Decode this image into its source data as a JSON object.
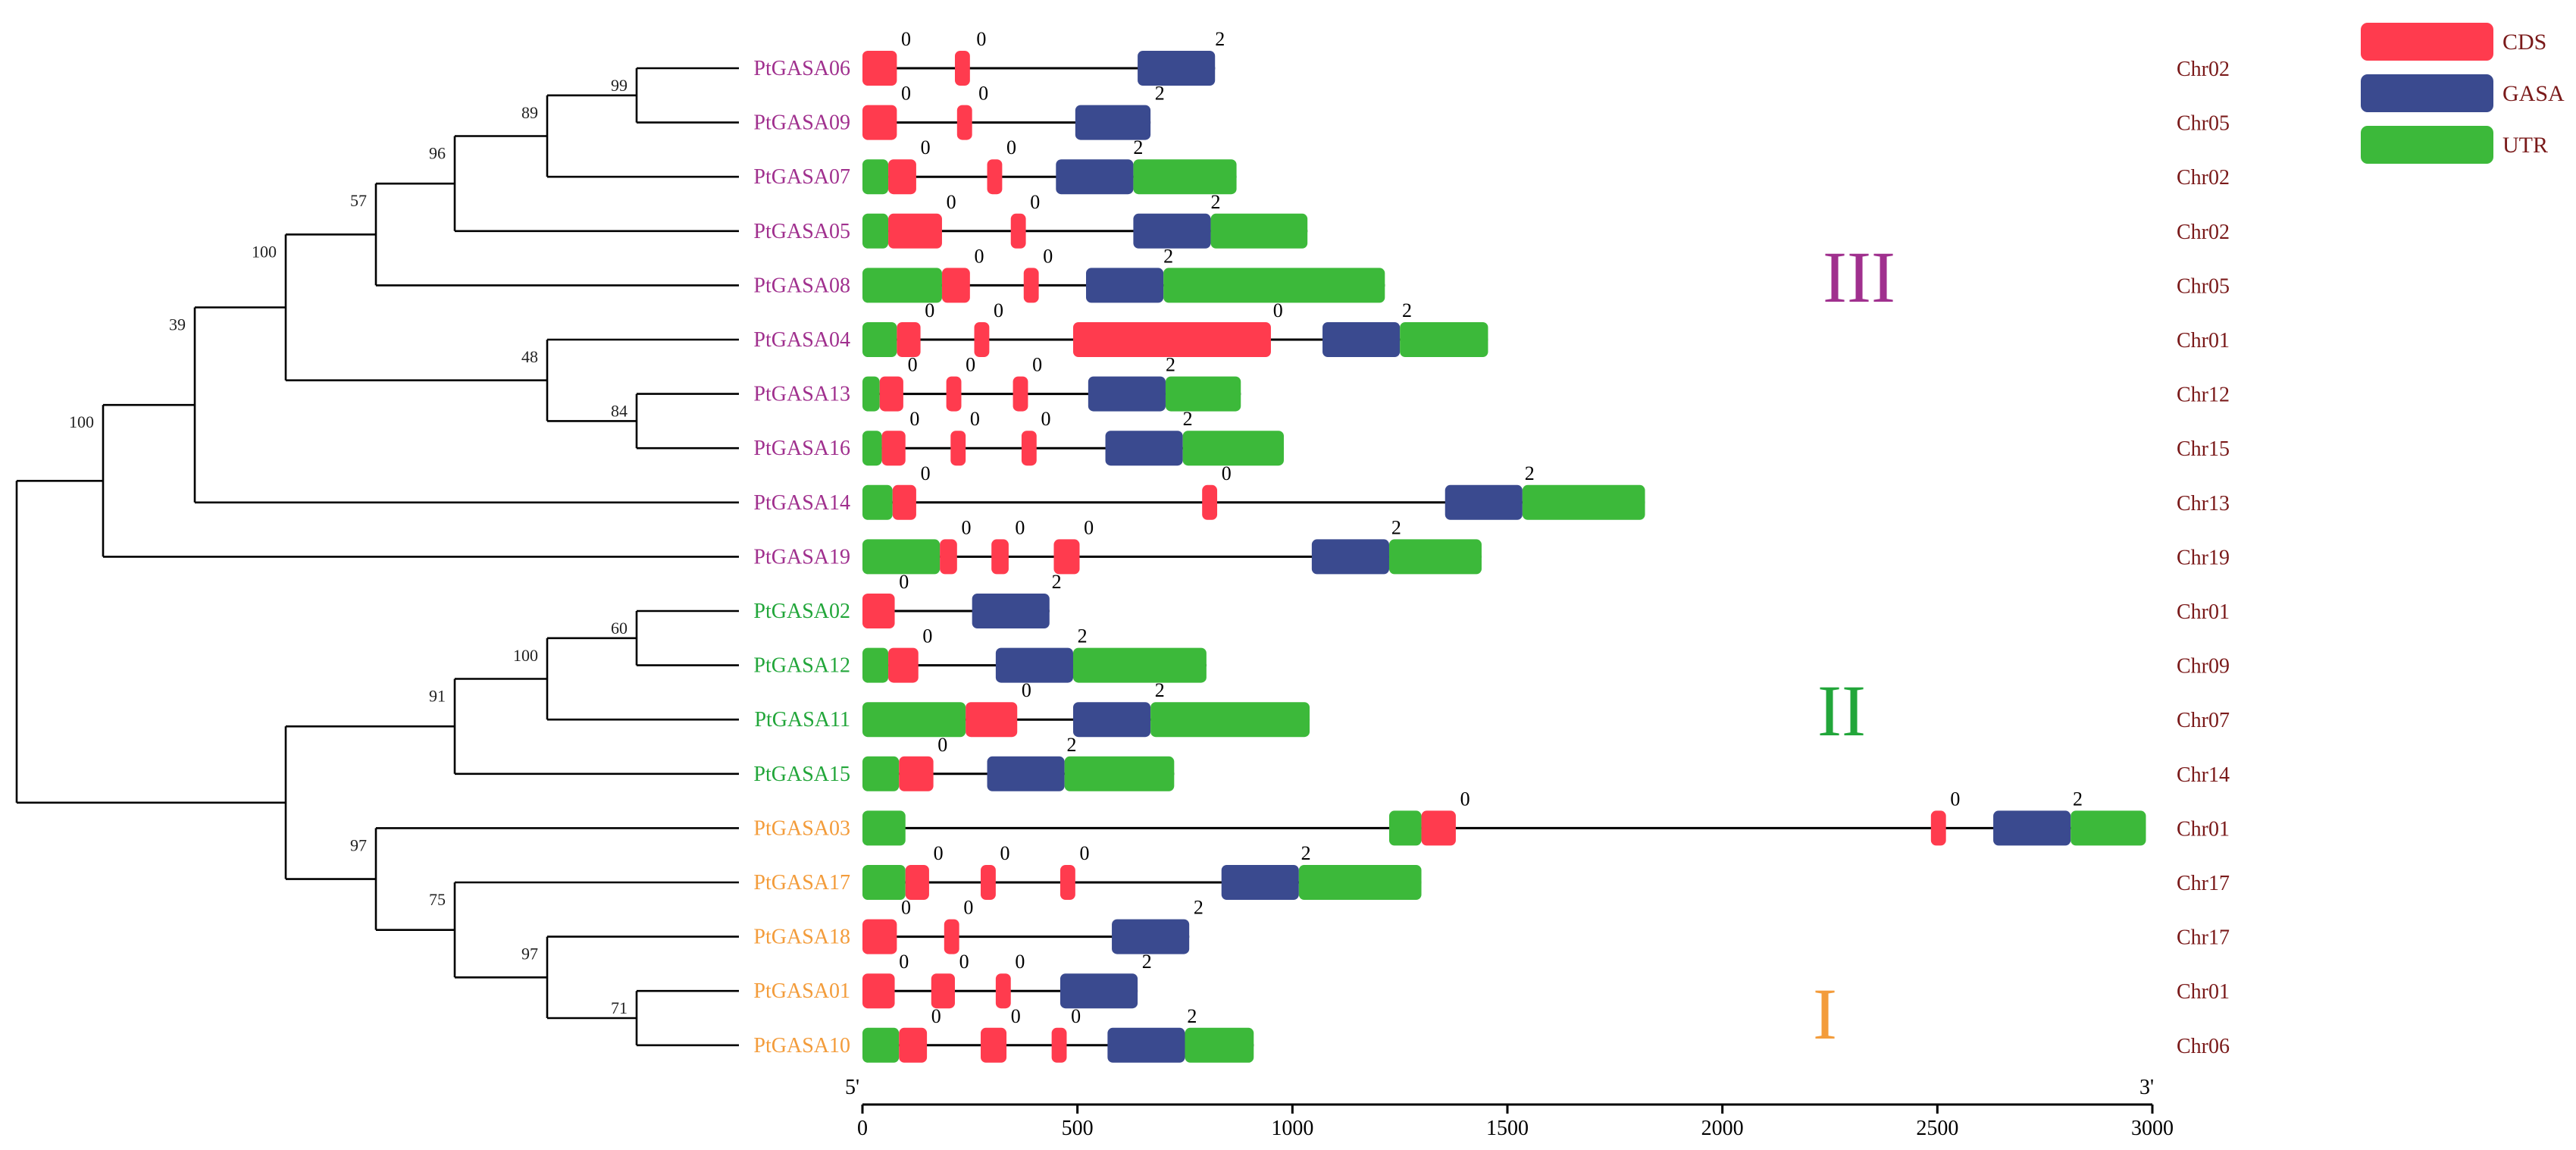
{
  "legend": [
    {
      "label": "CDS",
      "color": "#ff3b4e"
    },
    {
      "label": "GASA",
      "color": "#3a4a8f"
    },
    {
      "label": "UTR",
      "color": "#3cb93a"
    }
  ],
  "axis": {
    "min": 0,
    "max": 3000,
    "ticks": [
      0,
      500,
      1000,
      1500,
      2000,
      2500,
      3000
    ],
    "start_label": "5'",
    "end_label": "3'"
  },
  "groups": [
    {
      "label": "III",
      "color": "#a0308e"
    },
    {
      "label": "II",
      "color": "#22a63a"
    },
    {
      "label": "I",
      "color": "#f39c3b"
    }
  ],
  "bootstrap": [
    "99",
    "89",
    "96",
    "57",
    "48",
    "84",
    "100",
    "39",
    "100",
    "60",
    "100",
    "91",
    "71",
    "97",
    "75",
    "97"
  ],
  "genes": [
    {
      "name": "PtGASA06",
      "group": 0,
      "chr": "Chr02",
      "length": 820,
      "segments": [
        [
          "cds",
          0,
          80
        ],
        [
          "cds",
          215,
          250
        ],
        [
          "gasa",
          640,
          820
        ]
      ],
      "phases": [
        [
          "0",
          90
        ],
        [
          "0",
          265
        ],
        [
          "2",
          820
        ]
      ]
    },
    {
      "name": "PtGASA09",
      "group": 0,
      "chr": "Chr05",
      "length": 670,
      "segments": [
        [
          "cds",
          0,
          80
        ],
        [
          "cds",
          220,
          255
        ],
        [
          "gasa",
          495,
          670
        ]
      ],
      "phases": [
        [
          "0",
          90
        ],
        [
          "0",
          270
        ],
        [
          "2",
          680
        ]
      ]
    },
    {
      "name": "PtGASA07",
      "group": 0,
      "chr": "Chr02",
      "length": 870,
      "segments": [
        [
          "utr",
          0,
          60
        ],
        [
          "cds",
          60,
          125
        ],
        [
          "cds",
          290,
          325
        ],
        [
          "gasa",
          450,
          630
        ],
        [
          "utr",
          630,
          870
        ]
      ],
      "phases": [
        [
          "0",
          135
        ],
        [
          "0",
          335
        ],
        [
          "2",
          630
        ]
      ]
    },
    {
      "name": "PtGASA05",
      "group": 0,
      "chr": "Chr02",
      "length": 1035,
      "segments": [
        [
          "utr",
          0,
          60
        ],
        [
          "cds",
          60,
          185
        ],
        [
          "cds",
          345,
          380
        ],
        [
          "gasa",
          630,
          810
        ],
        [
          "utr",
          810,
          1035
        ]
      ],
      "phases": [
        [
          "0",
          195
        ],
        [
          "0",
          390
        ],
        [
          "2",
          810
        ]
      ]
    },
    {
      "name": "PtGASA08",
      "group": 0,
      "chr": "Chr05",
      "length": 1215,
      "segments": [
        [
          "utr",
          0,
          185
        ],
        [
          "cds",
          185,
          250
        ],
        [
          "cds",
          375,
          410
        ],
        [
          "gasa",
          520,
          700
        ],
        [
          "utr",
          700,
          1215
        ]
      ],
      "phases": [
        [
          "0",
          260
        ],
        [
          "0",
          420
        ],
        [
          "2",
          700
        ]
      ]
    },
    {
      "name": "PtGASA04",
      "group": 0,
      "chr": "Chr01",
      "length": 1455,
      "segments": [
        [
          "utr",
          0,
          80
        ],
        [
          "cds",
          80,
          135
        ],
        [
          "cds",
          260,
          295
        ],
        [
          "cds",
          490,
          950
        ],
        [
          "gasa",
          1070,
          1250
        ],
        [
          "utr",
          1250,
          1455
        ]
      ],
      "phases": [
        [
          "0",
          145
        ],
        [
          "0",
          305
        ],
        [
          "0",
          955
        ],
        [
          "2",
          1255
        ]
      ]
    },
    {
      "name": "PtGASA13",
      "group": 0,
      "chr": "Chr12",
      "length": 880,
      "segments": [
        [
          "utr",
          0,
          40
        ],
        [
          "cds",
          40,
          95
        ],
        [
          "cds",
          195,
          230
        ],
        [
          "cds",
          350,
          385
        ],
        [
          "gasa",
          525,
          705
        ],
        [
          "utr",
          705,
          880
        ]
      ],
      "phases": [
        [
          "0",
          105
        ],
        [
          "0",
          240
        ],
        [
          "0",
          395
        ],
        [
          "2",
          705
        ]
      ]
    },
    {
      "name": "PtGASA16",
      "group": 0,
      "chr": "Chr15",
      "length": 980,
      "segments": [
        [
          "utr",
          0,
          45
        ],
        [
          "cds",
          45,
          100
        ],
        [
          "cds",
          205,
          240
        ],
        [
          "cds",
          370,
          405
        ],
        [
          "gasa",
          565,
          745
        ],
        [
          "utr",
          745,
          980
        ]
      ],
      "phases": [
        [
          "0",
          110
        ],
        [
          "0",
          250
        ],
        [
          "0",
          415
        ],
        [
          "2",
          745
        ]
      ]
    },
    {
      "name": "PtGASA14",
      "group": 0,
      "chr": "Chr13",
      "length": 1820,
      "segments": [
        [
          "utr",
          0,
          70
        ],
        [
          "cds",
          70,
          125
        ],
        [
          "cds",
          790,
          825
        ],
        [
          "gasa",
          1355,
          1535
        ],
        [
          "utr",
          1535,
          1820
        ]
      ],
      "phases": [
        [
          "0",
          135
        ],
        [
          "0",
          835
        ],
        [
          "2",
          1540
        ]
      ]
    },
    {
      "name": "PtGASA19",
      "group": 0,
      "chr": "Chr19",
      "length": 1440,
      "segments": [
        [
          "utr",
          0,
          180
        ],
        [
          "cds",
          180,
          220
        ],
        [
          "cds",
          300,
          340
        ],
        [
          "cds",
          445,
          505
        ],
        [
          "gasa",
          1045,
          1225
        ],
        [
          "utr",
          1225,
          1440
        ]
      ],
      "phases": [
        [
          "0",
          230
        ],
        [
          "0",
          355
        ],
        [
          "0",
          515
        ],
        [
          "2",
          1230
        ]
      ]
    },
    {
      "name": "PtGASA02",
      "group": 1,
      "chr": "Chr01",
      "length": 435,
      "segments": [
        [
          "cds",
          0,
          75
        ],
        [
          "gasa",
          255,
          435
        ]
      ],
      "phases": [
        [
          "0",
          85
        ],
        [
          "2",
          440
        ]
      ]
    },
    {
      "name": "PtGASA12",
      "group": 1,
      "chr": "Chr09",
      "length": 800,
      "segments": [
        [
          "utr",
          0,
          60
        ],
        [
          "cds",
          60,
          130
        ],
        [
          "gasa",
          310,
          490
        ],
        [
          "utr",
          490,
          800
        ]
      ],
      "phases": [
        [
          "0",
          140
        ],
        [
          "2",
          500
        ]
      ]
    },
    {
      "name": "PtGASA11",
      "group": 1,
      "chr": "Chr07",
      "length": 1040,
      "segments": [
        [
          "utr",
          0,
          240
        ],
        [
          "cds",
          240,
          360
        ],
        [
          "gasa",
          490,
          670
        ],
        [
          "utr",
          670,
          1040
        ]
      ],
      "phases": [
        [
          "0",
          370
        ],
        [
          "2",
          680
        ]
      ]
    },
    {
      "name": "PtGASA15",
      "group": 1,
      "chr": "Chr14",
      "length": 725,
      "segments": [
        [
          "utr",
          0,
          85
        ],
        [
          "cds",
          85,
          165
        ],
        [
          "gasa",
          290,
          470
        ],
        [
          "utr",
          470,
          725
        ]
      ],
      "phases": [
        [
          "0",
          175
        ],
        [
          "2",
          475
        ]
      ]
    },
    {
      "name": "PtGASA03",
      "group": 2,
      "chr": "Chr01",
      "length": 2985,
      "segments": [
        [
          "utr",
          0,
          100
        ],
        [
          "utr",
          1225,
          1300
        ],
        [
          "cds",
          1300,
          1380
        ],
        [
          "cds",
          2485,
          2520
        ],
        [
          "gasa",
          2630,
          2810
        ],
        [
          "utr",
          2810,
          2985
        ]
      ],
      "phases": [
        [
          "0",
          1390
        ],
        [
          "0",
          2530
        ],
        [
          "2",
          2815
        ]
      ]
    },
    {
      "name": "PtGASA17",
      "group": 2,
      "chr": "Chr17",
      "length": 1300,
      "segments": [
        [
          "utr",
          0,
          100
        ],
        [
          "cds",
          100,
          155
        ],
        [
          "cds",
          275,
          310
        ],
        [
          "cds",
          460,
          495
        ],
        [
          "gasa",
          835,
          1015
        ],
        [
          "utr",
          1015,
          1300
        ]
      ],
      "phases": [
        [
          "0",
          165
        ],
        [
          "0",
          320
        ],
        [
          "0",
          505
        ],
        [
          "2",
          1020
        ]
      ]
    },
    {
      "name": "PtGASA18",
      "group": 2,
      "chr": "Chr17",
      "length": 760,
      "segments": [
        [
          "cds",
          0,
          80
        ],
        [
          "cds",
          190,
          225
        ],
        [
          "gasa",
          580,
          760
        ]
      ],
      "phases": [
        [
          "0",
          90
        ],
        [
          "0",
          235
        ],
        [
          "2",
          770
        ]
      ]
    },
    {
      "name": "PtGASA01",
      "group": 2,
      "chr": "Chr01",
      "length": 640,
      "segments": [
        [
          "cds",
          0,
          75
        ],
        [
          "cds",
          160,
          215
        ],
        [
          "cds",
          310,
          345
        ],
        [
          "gasa",
          460,
          640
        ]
      ],
      "phases": [
        [
          "0",
          85
        ],
        [
          "0",
          225
        ],
        [
          "0",
          355
        ],
        [
          "2",
          650
        ]
      ]
    },
    {
      "name": "PtGASA10",
      "group": 2,
      "chr": "Chr06",
      "length": 910,
      "segments": [
        [
          "utr",
          0,
          85
        ],
        [
          "cds",
          85,
          150
        ],
        [
          "cds",
          275,
          335
        ],
        [
          "cds",
          440,
          475
        ],
        [
          "gasa",
          570,
          750
        ],
        [
          "utr",
          750,
          910
        ]
      ],
      "phases": [
        [
          "0",
          160
        ],
        [
          "0",
          345
        ],
        [
          "0",
          485
        ],
        [
          "2",
          755
        ]
      ]
    }
  ]
}
